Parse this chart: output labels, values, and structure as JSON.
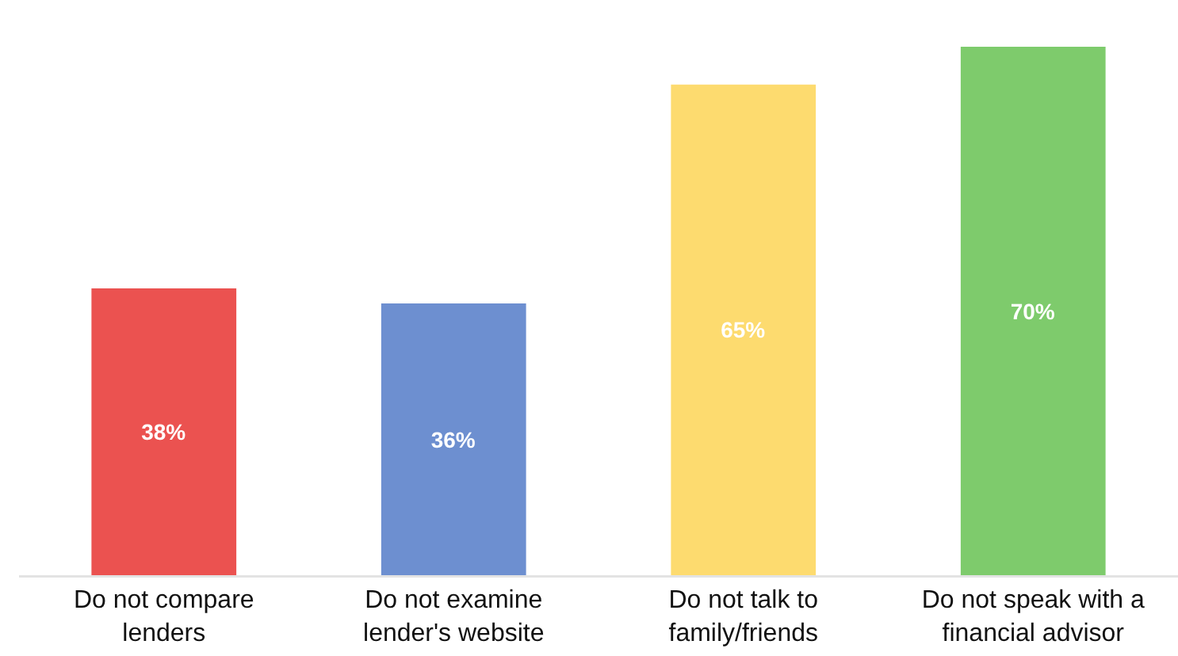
{
  "chart_data": {
    "type": "bar",
    "categories": [
      "Do not compare lenders",
      "Do not examine lender's website",
      "Do not talk to family/friends",
      "Do not speak with a financial advisor"
    ],
    "values": [
      38,
      36,
      65,
      70
    ],
    "value_labels": [
      "38%",
      "36%",
      "65%",
      "70%"
    ],
    "colors": [
      "#eb5250",
      "#6d8fd0",
      "#fddb6f",
      "#7ecb6c"
    ],
    "grid": false
  }
}
